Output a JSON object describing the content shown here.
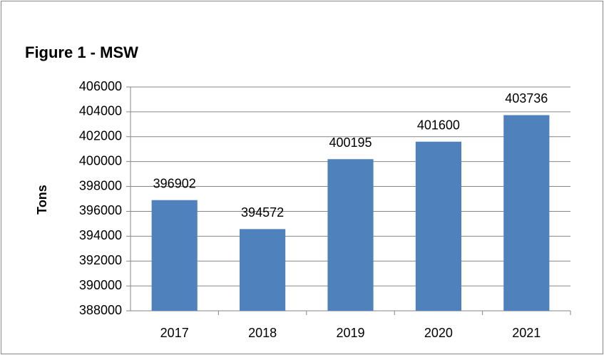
{
  "chart_data": {
    "type": "bar",
    "title": "Figure 1 - MSW",
    "y_label": "Tons",
    "categories": [
      "2017",
      "2018",
      "2019",
      "2020",
      "2021"
    ],
    "values": [
      396902,
      394572,
      400195,
      401600,
      403736
    ],
    "color": "#4f81bd",
    "ylim": [
      388000,
      406000
    ],
    "yticks": [
      388000,
      390000,
      392000,
      394000,
      396000,
      398000,
      400000,
      402000,
      404000,
      406000
    ],
    "grid": true
  }
}
